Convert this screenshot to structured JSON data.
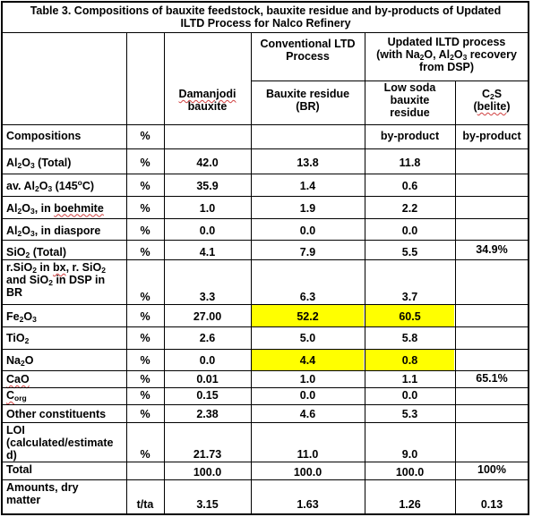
{
  "title": {
    "line1": "Table 3. Compositions of bauxite feedstock, bauxite residue and by-products of Updated",
    "line2": "ILTD Process for Nalco Refinery"
  },
  "group_headers": {
    "conventional": [
      "Conventional LTD",
      "Process"
    ],
    "updated": [
      "Updated ILTD process",
      "(with Na2O, Al2O3 recovery",
      "from DSP)"
    ]
  },
  "sub_headers": {
    "bauxite": [
      "Damanjodi",
      "bauxite"
    ],
    "br": [
      "Bauxite residue",
      "(BR)"
    ],
    "lowsoda": [
      "Low soda",
      "bauxite",
      "residue"
    ],
    "c2s": [
      "C2S",
      "(belite)"
    ]
  },
  "highlight_color": "#ffff00",
  "rows": [
    {
      "label": "Compositions",
      "unit": "%",
      "bauxite": "",
      "br": "",
      "lowsoda": "by-product",
      "c2s": "by-product"
    },
    {
      "label": "Al2O3 (Total)",
      "unit": "%",
      "bauxite": "42.0",
      "br": "13.8",
      "lowsoda": "11.8",
      "c2s": ""
    },
    {
      "label": "av. Al2O3 (145oC)",
      "unit": "%",
      "bauxite": "35.9",
      "br": "1.4",
      "lowsoda": "0.6",
      "c2s": ""
    },
    {
      "label": "Al2O3, in boehmite",
      "unit": "%",
      "bauxite": "1.0",
      "br": "1.9",
      "lowsoda": "2.2",
      "c2s": ""
    },
    {
      "label": "Al2O3, in diaspore",
      "unit": "%",
      "bauxite": "0.0",
      "br": "0.0",
      "lowsoda": "0.0",
      "c2s": ""
    },
    {
      "label": "SiO2 (Total)",
      "unit": "%",
      "bauxite": "4.1",
      "br": "7.9",
      "lowsoda": "5.5",
      "c2s": "34.9%"
    },
    {
      "label": "r.SiO2 in bx, r. SiO2 and SiO2 in DSP in BR",
      "unit": "%",
      "bauxite": "3.3",
      "br": "6.3",
      "lowsoda": "3.7",
      "c2s": ""
    },
    {
      "label": "Fe2O3",
      "unit": "%",
      "bauxite": "27.00",
      "br": "52.2",
      "lowsoda": "60.5",
      "c2s": ""
    },
    {
      "label": "TiO2",
      "unit": "%",
      "bauxite": "2.6",
      "br": "5.0",
      "lowsoda": "5.8",
      "c2s": ""
    },
    {
      "label": "Na2O",
      "unit": "%",
      "bauxite": "0.0",
      "br": "4.4",
      "lowsoda": "0.8",
      "c2s": ""
    },
    {
      "label": "CaO",
      "unit": "%",
      "bauxite": "0.01",
      "br": "1.0",
      "lowsoda": "1.1",
      "c2s": "65.1%"
    },
    {
      "label": "Corg",
      "unit": "%",
      "bauxite": "0.15",
      "br": "0.0",
      "lowsoda": "0.0",
      "c2s": ""
    },
    {
      "label": "Other constituents",
      "unit": "%",
      "bauxite": "2.38",
      "br": "4.6",
      "lowsoda": "5.3",
      "c2s": ""
    },
    {
      "label": "LOI (calculated/estimated)",
      "unit": "%",
      "bauxite": "21.73",
      "br": "11.0",
      "lowsoda": "9.0",
      "c2s": ""
    },
    {
      "label": "Total",
      "unit": "",
      "bauxite": "100.0",
      "br": "100.0",
      "lowsoda": "100.0",
      "c2s": "100%"
    },
    {
      "label": "Amounts, dry matter",
      "unit": "t/ta",
      "bauxite": "3.15",
      "br": "1.63",
      "lowsoda": "1.26",
      "c2s": "0.13"
    }
  ]
}
